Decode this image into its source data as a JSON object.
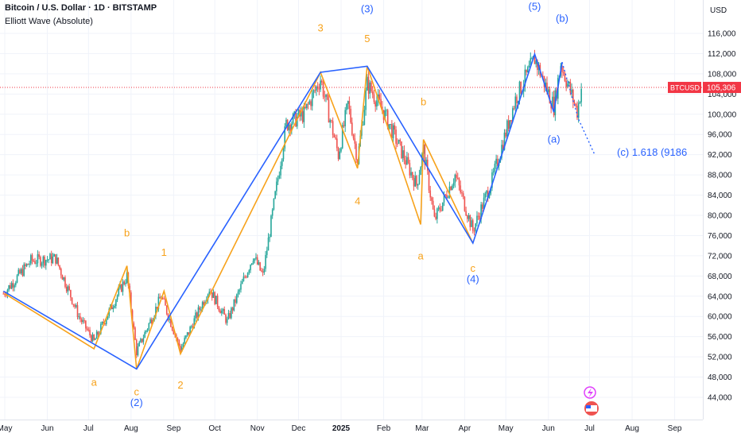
{
  "header": {
    "title": "Bitcoin / U.S. Dollar · 1D · BITSTAMP",
    "indicator": "Elliott Wave (Absolute)"
  },
  "axis": {
    "currency": "USD",
    "price_ticks": [
      "116,000",
      "112,000",
      "108,000",
      "104,000",
      "100,000",
      "96,000",
      "92,000",
      "88,000",
      "84,000",
      "80,000",
      "76,000",
      "72,000",
      "68,000",
      "64,000",
      "60,000",
      "56,000",
      "52,000",
      "48,000",
      "44,000"
    ],
    "time_ticks": [
      "May",
      "Jun",
      "Jul",
      "Aug",
      "Sep",
      "Oct",
      "Nov",
      "Dec",
      "2025",
      "Feb",
      "Mar",
      "Apr",
      "May",
      "Jun",
      "Jul",
      "Aug",
      "Sep"
    ]
  },
  "last_price": {
    "symbol": "BTCUSD",
    "value": "105,306"
  },
  "colors": {
    "up": "#26a69a",
    "down": "#ef5350",
    "grid": "#f0f3fa",
    "primary_wave": "#2962ff",
    "minor_wave": "#f7a21b",
    "price_line": "#f23645"
  },
  "chart_data": {
    "type": "candlestick",
    "x_axis": "date",
    "y_axis": "price USD",
    "y_range": [
      42000,
      120000
    ],
    "x_range": [
      "2024-05-01",
      "2025-09-25"
    ],
    "grid": true,
    "last_price": 105306,
    "wave_primary": [
      {
        "date": "2024-04-30",
        "price": 65000
      },
      {
        "date": "2024-08-05",
        "price": 49600
      },
      {
        "date": "2024-12-17",
        "price": 108300
      },
      {
        "date": "2025-01-20",
        "price": 109500
      },
      {
        "date": "2025-04-07",
        "price": 74500
      },
      {
        "date": "2025-05-22",
        "price": 111900
      },
      {
        "date": "2025-06-05",
        "price": 100400
      },
      {
        "date": "2025-06-11",
        "price": 110300
      }
    ],
    "wave_projection": [
      {
        "date": "2025-06-23",
        "price": 99000
      },
      {
        "date": "2025-07-05",
        "price": 91860
      }
    ],
    "wave_minor": [
      {
        "date": "2024-05-01",
        "price": 64500
      },
      {
        "date": "2024-07-05",
        "price": 53600
      },
      {
        "date": "2024-07-29",
        "price": 70000
      },
      {
        "date": "2024-08-05",
        "price": 49600
      },
      {
        "date": "2024-08-25",
        "price": 65000
      },
      {
        "date": "2024-09-06",
        "price": 52600
      },
      {
        "date": "2024-12-17",
        "price": 108300
      },
      {
        "date": "2025-01-13",
        "price": 89300
      },
      {
        "date": "2025-01-20",
        "price": 109500
      },
      {
        "date": "2025-02-28",
        "price": 78200
      },
      {
        "date": "2025-03-02",
        "price": 95000
      },
      {
        "date": "2025-04-07",
        "price": 74500
      }
    ],
    "wave_labels_primary": [
      {
        "text": "(2)",
        "date": "2024-08-05",
        "price": 42300
      },
      {
        "text": "(3)",
        "date": "2025-01-20",
        "price": 120200
      },
      {
        "text": "(4)",
        "date": "2025-04-07",
        "price": 66700
      },
      {
        "text": "(5)",
        "date": "2025-05-22",
        "price": 120600
      },
      {
        "text": "(b)",
        "date": "2025-06-11",
        "price": 118300
      },
      {
        "text": "(a)",
        "date": "2025-06-05",
        "price": 94400
      },
      {
        "text": "(c) 1.618 (9186",
        "date": "2025-07-21",
        "price": 91800
      }
    ],
    "wave_labels_minor": [
      {
        "text": "a",
        "date": "2024-07-05",
        "price": 46300
      },
      {
        "text": "b",
        "date": "2024-07-29",
        "price": 75800
      },
      {
        "text": "c",
        "date": "2024-08-05",
        "price": 44400
      },
      {
        "text": "1",
        "date": "2024-08-25",
        "price": 72000
      },
      {
        "text": "2",
        "date": "2024-09-06",
        "price": 45700
      },
      {
        "text": "3",
        "date": "2024-12-17",
        "price": 116400
      },
      {
        "text": "4",
        "date": "2025-01-13",
        "price": 82100
      },
      {
        "text": "5",
        "date": "2025-01-20",
        "price": 114300
      },
      {
        "text": "a",
        "date": "2025-02-28",
        "price": 71300
      },
      {
        "text": "b",
        "date": "2025-03-02",
        "price": 101800
      },
      {
        "text": "c",
        "date": "2025-04-07",
        "price": 68800
      }
    ],
    "price_anchors": [
      {
        "date": "2024-04-30",
        "price": 64500
      },
      {
        "date": "2024-05-20",
        "price": 71000
      },
      {
        "date": "2024-06-07",
        "price": 71500
      },
      {
        "date": "2024-06-24",
        "price": 60000
      },
      {
        "date": "2024-07-05",
        "price": 55000
      },
      {
        "date": "2024-07-29",
        "price": 68000
      },
      {
        "date": "2024-08-05",
        "price": 53000
      },
      {
        "date": "2024-08-23",
        "price": 64000
      },
      {
        "date": "2024-09-06",
        "price": 53500
      },
      {
        "date": "2024-09-27",
        "price": 65500
      },
      {
        "date": "2024-10-10",
        "price": 59000
      },
      {
        "date": "2024-10-29",
        "price": 72000
      },
      {
        "date": "2024-11-05",
        "price": 68000
      },
      {
        "date": "2024-11-22",
        "price": 98000
      },
      {
        "date": "2024-12-05",
        "price": 100000
      },
      {
        "date": "2024-12-17",
        "price": 107000
      },
      {
        "date": "2024-12-30",
        "price": 92000
      },
      {
        "date": "2025-01-06",
        "price": 102000
      },
      {
        "date": "2025-01-13",
        "price": 91000
      },
      {
        "date": "2025-01-20",
        "price": 106000
      },
      {
        "date": "2025-01-31",
        "price": 101000
      },
      {
        "date": "2025-02-25",
        "price": 86000
      },
      {
        "date": "2025-03-02",
        "price": 93000
      },
      {
        "date": "2025-03-10",
        "price": 79000
      },
      {
        "date": "2025-03-25",
        "price": 88000
      },
      {
        "date": "2025-04-07",
        "price": 77000
      },
      {
        "date": "2025-04-21",
        "price": 87000
      },
      {
        "date": "2025-05-08",
        "price": 103000
      },
      {
        "date": "2025-05-22",
        "price": 111000
      },
      {
        "date": "2025-06-05",
        "price": 101500
      },
      {
        "date": "2025-06-10",
        "price": 110000
      },
      {
        "date": "2025-06-17",
        "price": 104500
      },
      {
        "date": "2025-06-22",
        "price": 100500
      },
      {
        "date": "2025-06-25",
        "price": 105306
      }
    ]
  }
}
